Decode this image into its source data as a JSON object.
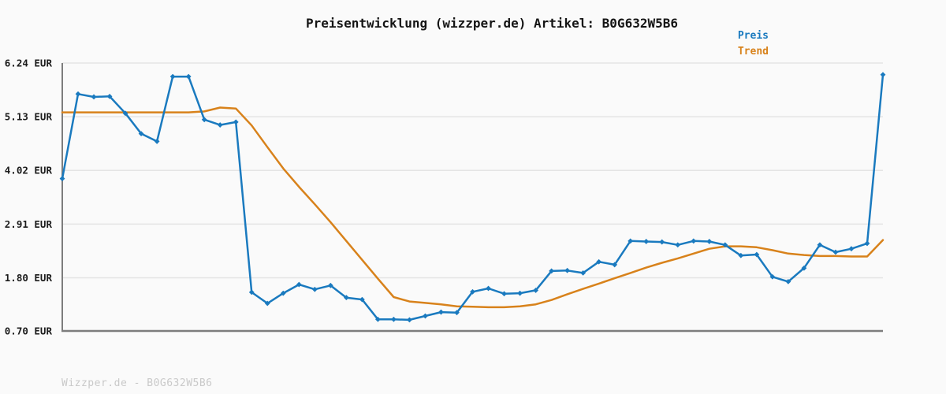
{
  "chart_data": {
    "type": "line",
    "title": "Preisentwicklung (wizzper.de) Artikel: B0G632W5B6",
    "watermark": "Wizzper.de - B0G632W5B6",
    "xlabel": "",
    "ylabel": "",
    "x_tick_labels": [],
    "grid": true,
    "legend_position": "top-right",
    "ylim": [
      0.7,
      6.24
    ],
    "y_ticks": [
      {
        "label": "6.24 EUR",
        "value": 6.24
      },
      {
        "label": "5.13 EUR",
        "value": 5.13
      },
      {
        "label": "4.02 EUR",
        "value": 4.02
      },
      {
        "label": "2.91 EUR",
        "value": 2.91
      },
      {
        "label": "1.80 EUR",
        "value": 1.8
      },
      {
        "label": "0.70 EUR",
        "value": 0.7
      }
    ],
    "axis_color": "#7d7d7d",
    "gridline_color": "#e4e4e4",
    "series": [
      {
        "name": "Preis",
        "color": "#1a7abf",
        "markers": true,
        "values": [
          3.85,
          5.6,
          5.54,
          5.55,
          5.2,
          4.78,
          4.62,
          5.96,
          5.96,
          5.07,
          4.96,
          5.02,
          1.5,
          1.27,
          1.48,
          1.66,
          1.56,
          1.64,
          1.39,
          1.35,
          0.94,
          0.94,
          0.93,
          1.01,
          1.09,
          1.08,
          1.51,
          1.58,
          1.47,
          1.48,
          1.54,
          1.94,
          1.95,
          1.9,
          2.13,
          2.07,
          2.56,
          2.55,
          2.54,
          2.48,
          2.56,
          2.55,
          2.48,
          2.26,
          2.28,
          1.82,
          1.72,
          2.0,
          2.48,
          2.33,
          2.4,
          2.51,
          6.0
        ]
      },
      {
        "name": "Trend",
        "color": "#d8821b",
        "markers": false,
        "values": [
          5.22,
          5.22,
          5.22,
          5.22,
          5.22,
          5.22,
          5.22,
          5.22,
          5.22,
          5.24,
          5.32,
          5.3,
          4.95,
          4.5,
          4.06,
          3.68,
          3.32,
          2.95,
          2.56,
          2.17,
          1.78,
          1.4,
          1.31,
          1.28,
          1.25,
          1.21,
          1.2,
          1.19,
          1.19,
          1.21,
          1.25,
          1.34,
          1.46,
          1.57,
          1.68,
          1.79,
          1.9,
          2.01,
          2.11,
          2.2,
          2.3,
          2.4,
          2.45,
          2.45,
          2.43,
          2.37,
          2.3,
          2.27,
          2.25,
          2.25,
          2.24,
          2.24,
          2.58
        ]
      }
    ]
  }
}
